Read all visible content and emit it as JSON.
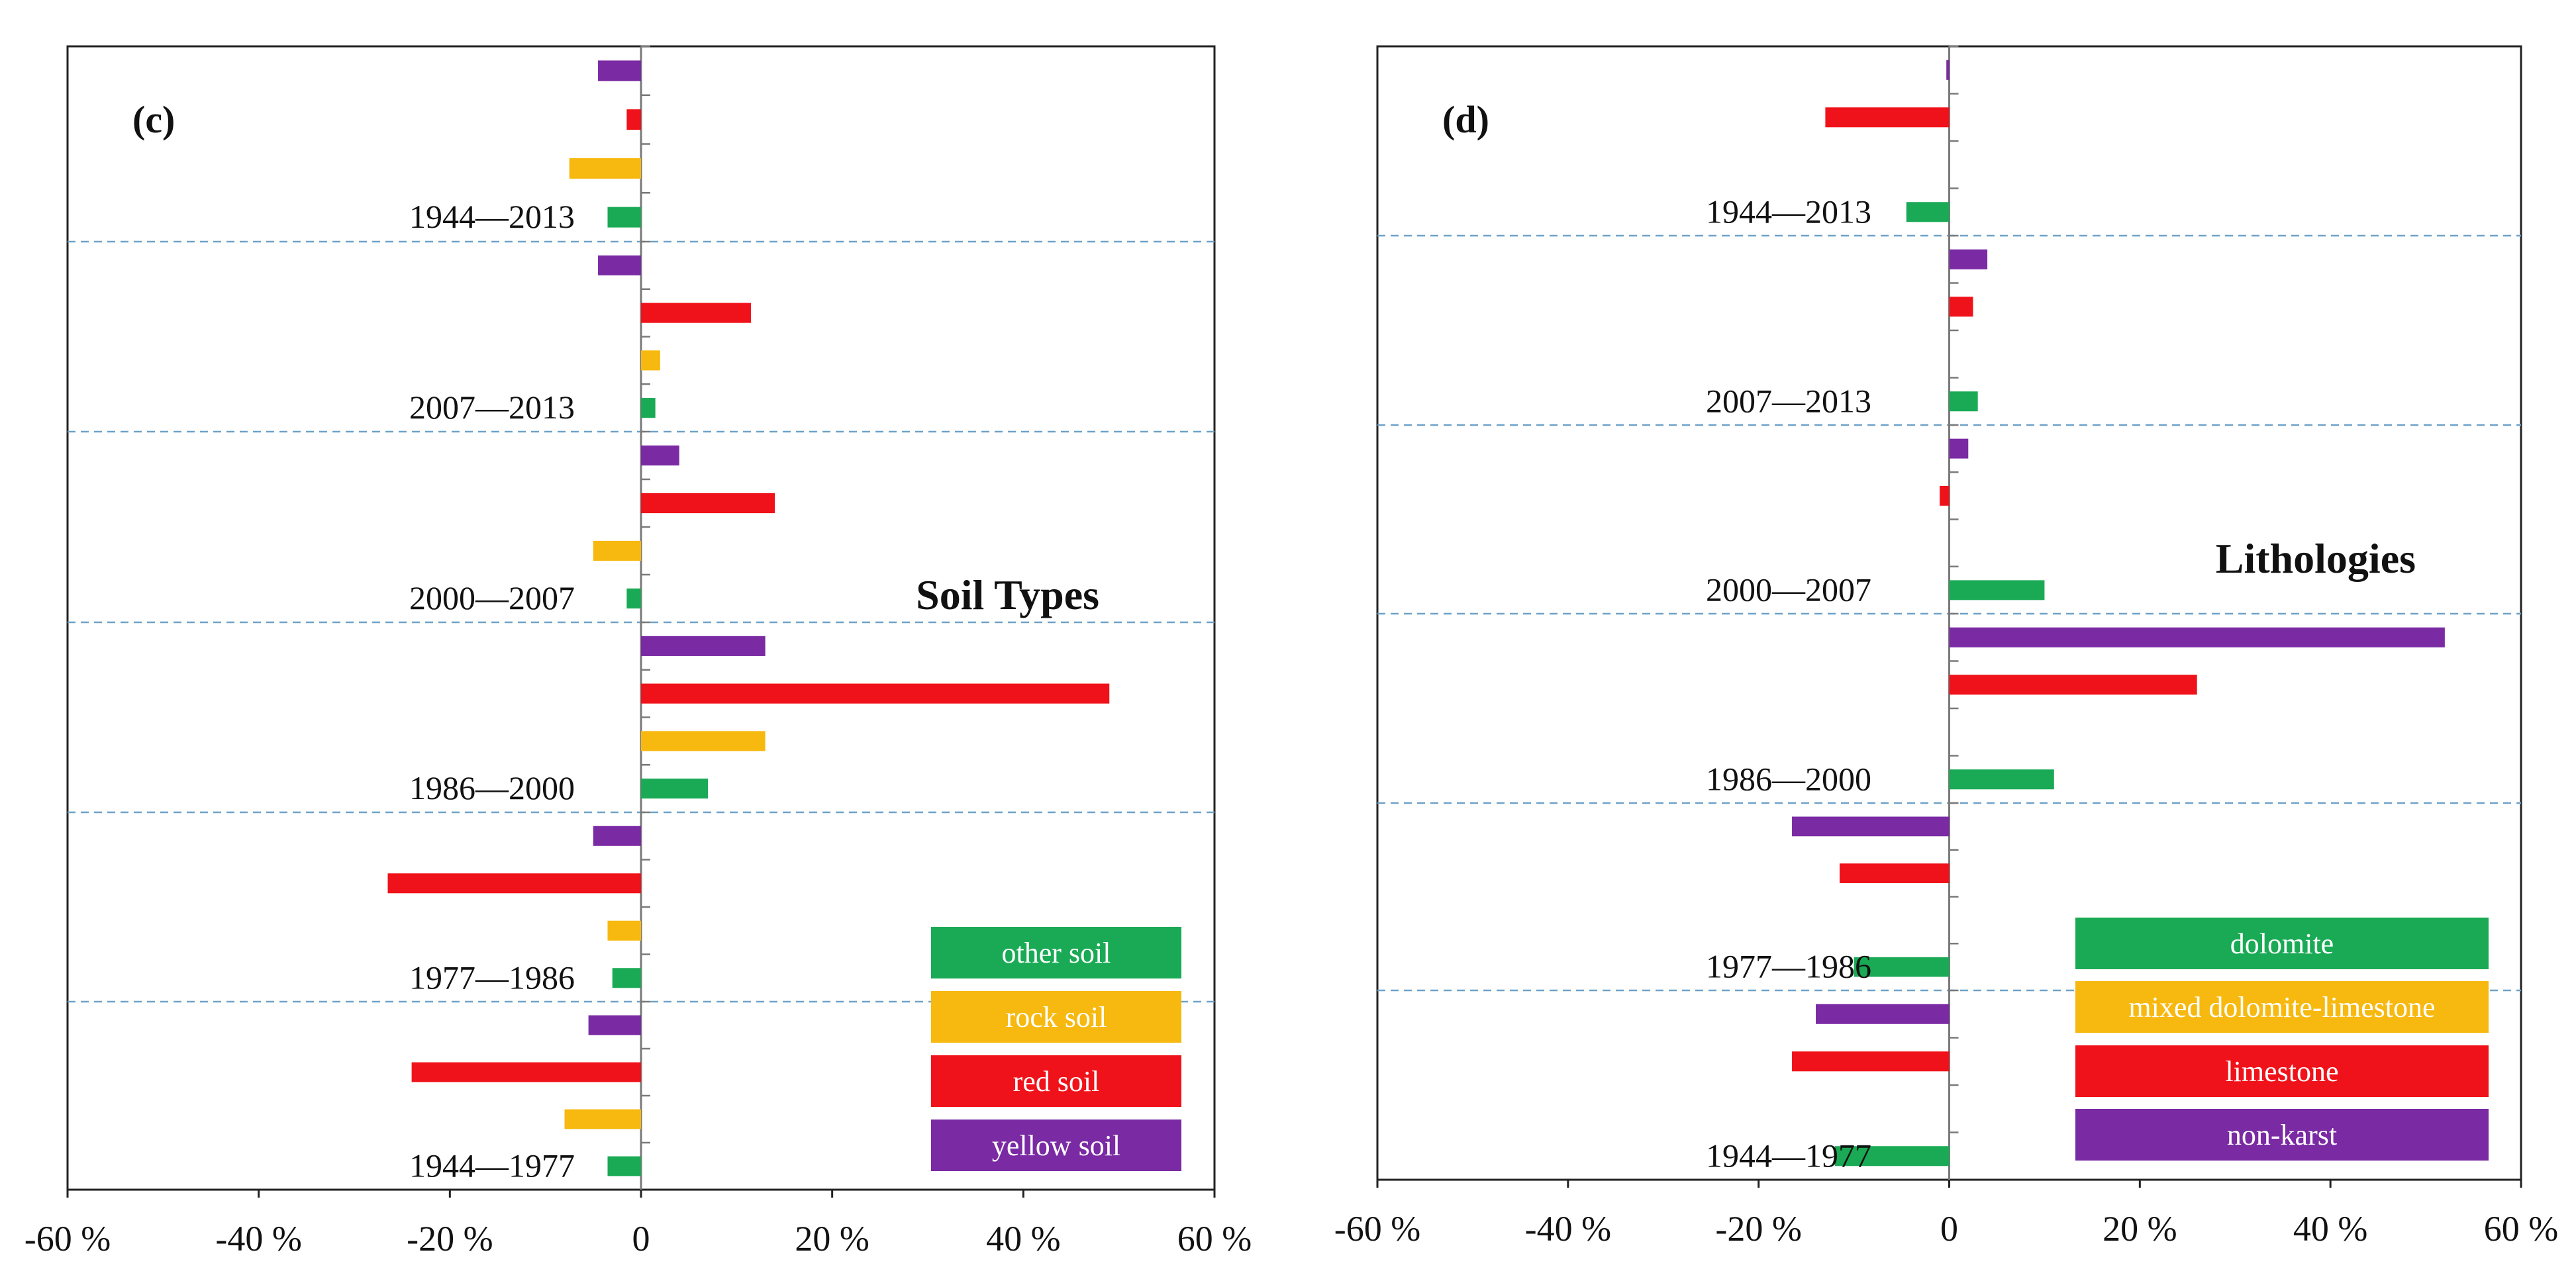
{
  "colors": {
    "green": "#1aaa55",
    "yellow": "#f7b90f",
    "red": "#f0121a",
    "purple": "#7a2aa3",
    "grid": "#6fa2c8",
    "frame": "#222222"
  },
  "chart_data": [
    {
      "type": "bar",
      "orientation": "horizontal",
      "panel_label": "(c)",
      "title": "Soil Types",
      "xlim": [
        -60,
        60
      ],
      "x_ticks": [
        "-60 %",
        "-40 %",
        "-20 %",
        "0",
        "20 %",
        "40 %",
        "60 %"
      ],
      "categories": [
        "1944—2013",
        "2007—2013",
        "2000—2007",
        "1986—2000",
        "1977—1986",
        "1944—1977"
      ],
      "series": [
        {
          "name": "yellow soil",
          "color_key": "purple",
          "values": [
            -4.5,
            -4.5,
            4,
            13,
            -5,
            -5.5
          ]
        },
        {
          "name": "red soil",
          "color_key": "red",
          "values": [
            -1.5,
            11.5,
            14,
            49,
            -26.5,
            -24
          ]
        },
        {
          "name": "rock soil",
          "color_key": "yellow",
          "values": [
            -7.5,
            2,
            -5,
            13,
            -3.5,
            -8
          ]
        },
        {
          "name": "other soil",
          "color_key": "green",
          "values": [
            -3.5,
            1.5,
            -1.5,
            7,
            -3,
            -3.5
          ]
        }
      ],
      "legend": [
        "other soil",
        "rock soil",
        "red soil",
        "yellow soil"
      ],
      "legend_colors": [
        "green",
        "yellow",
        "red",
        "purple"
      ],
      "legend_position": "bottom-right"
    },
    {
      "type": "bar",
      "orientation": "horizontal",
      "panel_label": "(d)",
      "title": "Lithologies",
      "xlim": [
        -60,
        60
      ],
      "x_ticks": [
        "-60 %",
        "-40 %",
        "-20 %",
        "0",
        "20 %",
        "40 %",
        "60 %"
      ],
      "categories": [
        "1944—2013",
        "2007—2013",
        "2000—2007",
        "1986—2000",
        "1977—1986",
        "1944—1977"
      ],
      "series": [
        {
          "name": "non-karst",
          "color_key": "purple",
          "values": [
            -0.3,
            4,
            2,
            52,
            -16.5,
            -14
          ]
        },
        {
          "name": "limestone",
          "color_key": "red",
          "values": [
            -13,
            2.5,
            -1,
            26,
            -11.5,
            -16.5
          ]
        },
        {
          "name": "mixed dolomite-limestone",
          "color_key": "yellow",
          "values": [
            0,
            0,
            0,
            0,
            0,
            0
          ]
        },
        {
          "name": "dolomite",
          "color_key": "green",
          "values": [
            -4.5,
            3,
            10,
            11,
            -10,
            -12
          ]
        }
      ],
      "legend": [
        "dolomite",
        "mixed dolomite-limestone",
        "limestone",
        "non-karst"
      ],
      "legend_colors": [
        "green",
        "yellow",
        "red",
        "purple"
      ],
      "legend_position": "bottom-right"
    }
  ]
}
